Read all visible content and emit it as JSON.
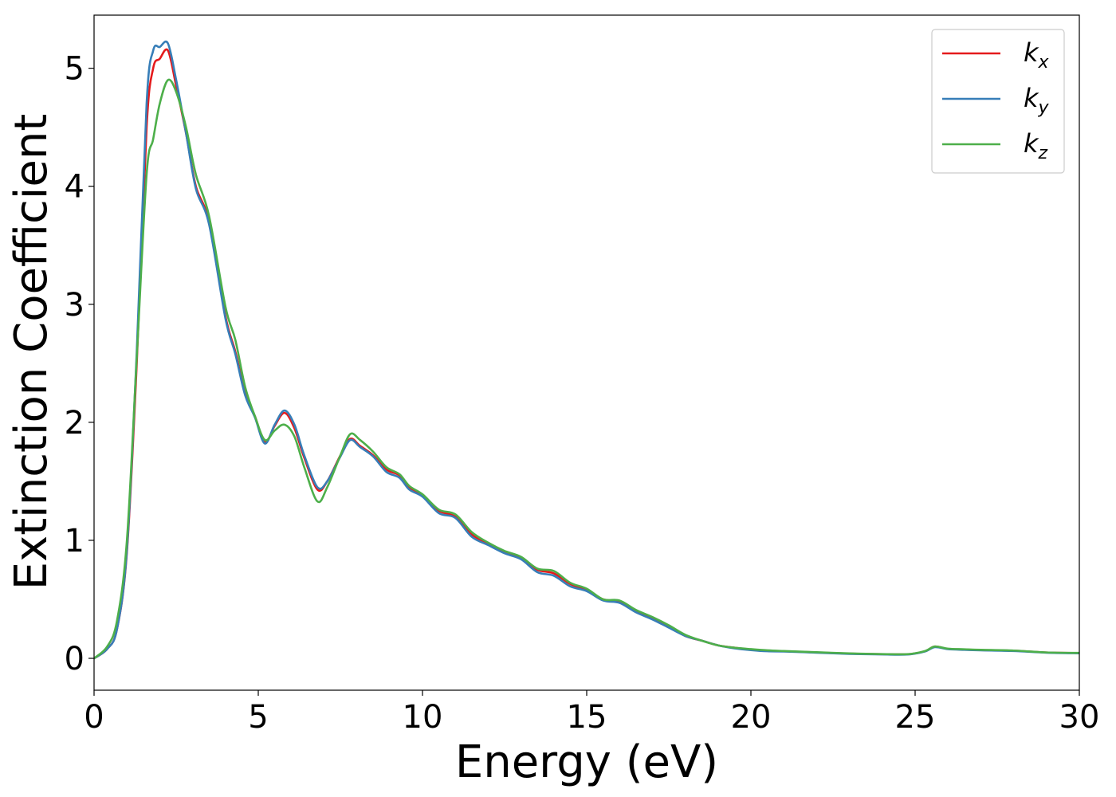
{
  "chart_data": {
    "type": "line",
    "title": "",
    "xlabel": "Energy (eV)",
    "ylabel": "Extinction Coefficient",
    "xlim": [
      0,
      30
    ],
    "ylim": [
      -0.27,
      5.45
    ],
    "xticks": [
      0,
      5,
      10,
      15,
      20,
      25,
      30
    ],
    "xtick_labels": [
      "0",
      "5",
      "10",
      "15",
      "20",
      "25",
      "30"
    ],
    "yticks": [
      0,
      1,
      2,
      3,
      4,
      5
    ],
    "ytick_labels": [
      "0",
      "1",
      "2",
      "3",
      "4",
      "5"
    ],
    "grid": false,
    "legend_position": "top-right",
    "series": [
      {
        "name": "k",
        "subscript": "x",
        "color": "#e41a1c",
        "points": [
          [
            0,
            0
          ],
          [
            0.4,
            0.08
          ],
          [
            0.7,
            0.25
          ],
          [
            1.0,
            0.9
          ],
          [
            1.3,
            2.5
          ],
          [
            1.6,
            4.5
          ],
          [
            1.8,
            5.0
          ],
          [
            2.0,
            5.08
          ],
          [
            2.25,
            5.15
          ],
          [
            2.5,
            4.85
          ],
          [
            2.8,
            4.45
          ],
          [
            3.1,
            4.0
          ],
          [
            3.5,
            3.7
          ],
          [
            4.0,
            2.9
          ],
          [
            4.3,
            2.6
          ],
          [
            4.6,
            2.25
          ],
          [
            4.9,
            2.05
          ],
          [
            5.2,
            1.83
          ],
          [
            5.5,
            1.97
          ],
          [
            5.8,
            2.08
          ],
          [
            6.1,
            1.95
          ],
          [
            6.4,
            1.7
          ],
          [
            6.8,
            1.43
          ],
          [
            7.1,
            1.5
          ],
          [
            7.5,
            1.72
          ],
          [
            7.8,
            1.86
          ],
          [
            8.1,
            1.8
          ],
          [
            8.5,
            1.72
          ],
          [
            8.9,
            1.6
          ],
          [
            9.3,
            1.55
          ],
          [
            9.6,
            1.45
          ],
          [
            10.0,
            1.38
          ],
          [
            10.5,
            1.25
          ],
          [
            11.0,
            1.2
          ],
          [
            11.5,
            1.05
          ],
          [
            12.0,
            0.97
          ],
          [
            12.5,
            0.9
          ],
          [
            13.0,
            0.85
          ],
          [
            13.5,
            0.75
          ],
          [
            14.0,
            0.72
          ],
          [
            14.5,
            0.63
          ],
          [
            15.0,
            0.58
          ],
          [
            15.5,
            0.5
          ],
          [
            16.0,
            0.48
          ],
          [
            16.5,
            0.4
          ],
          [
            17.0,
            0.34
          ],
          [
            17.5,
            0.27
          ],
          [
            18.0,
            0.19
          ],
          [
            18.5,
            0.15
          ],
          [
            19.0,
            0.11
          ],
          [
            19.5,
            0.09
          ],
          [
            20.0,
            0.075
          ],
          [
            20.5,
            0.065
          ],
          [
            21.0,
            0.06
          ],
          [
            22.0,
            0.05
          ],
          [
            23.0,
            0.04
          ],
          [
            24.0,
            0.035
          ],
          [
            24.8,
            0.035
          ],
          [
            25.3,
            0.06
          ],
          [
            25.6,
            0.1
          ],
          [
            26.0,
            0.08
          ],
          [
            26.5,
            0.075
          ],
          [
            27.0,
            0.07
          ],
          [
            28.0,
            0.065
          ],
          [
            29.0,
            0.05
          ],
          [
            30.0,
            0.045
          ]
        ]
      },
      {
        "name": "k",
        "subscript": "y",
        "color": "#377eb8",
        "points": [
          [
            0,
            0
          ],
          [
            0.4,
            0.08
          ],
          [
            0.7,
            0.25
          ],
          [
            1.0,
            0.92
          ],
          [
            1.3,
            2.6
          ],
          [
            1.6,
            4.7
          ],
          [
            1.8,
            5.15
          ],
          [
            2.0,
            5.18
          ],
          [
            2.25,
            5.21
          ],
          [
            2.5,
            4.9
          ],
          [
            2.8,
            4.45
          ],
          [
            3.1,
            3.98
          ],
          [
            3.5,
            3.68
          ],
          [
            4.0,
            2.88
          ],
          [
            4.3,
            2.58
          ],
          [
            4.6,
            2.23
          ],
          [
            4.9,
            2.04
          ],
          [
            5.2,
            1.82
          ],
          [
            5.5,
            1.98
          ],
          [
            5.8,
            2.1
          ],
          [
            6.1,
            1.98
          ],
          [
            6.4,
            1.72
          ],
          [
            6.8,
            1.45
          ],
          [
            7.1,
            1.5
          ],
          [
            7.5,
            1.71
          ],
          [
            7.8,
            1.85
          ],
          [
            8.1,
            1.79
          ],
          [
            8.5,
            1.71
          ],
          [
            8.9,
            1.58
          ],
          [
            9.3,
            1.53
          ],
          [
            9.6,
            1.43
          ],
          [
            10.0,
            1.37
          ],
          [
            10.5,
            1.23
          ],
          [
            11.0,
            1.19
          ],
          [
            11.5,
            1.03
          ],
          [
            12.0,
            0.96
          ],
          [
            12.5,
            0.89
          ],
          [
            13.0,
            0.84
          ],
          [
            13.5,
            0.73
          ],
          [
            14.0,
            0.7
          ],
          [
            14.5,
            0.61
          ],
          [
            15.0,
            0.57
          ],
          [
            15.5,
            0.49
          ],
          [
            16.0,
            0.47
          ],
          [
            16.5,
            0.39
          ],
          [
            17.0,
            0.33
          ],
          [
            17.5,
            0.26
          ],
          [
            18.0,
            0.19
          ],
          [
            18.5,
            0.15
          ],
          [
            19.0,
            0.11
          ],
          [
            19.5,
            0.085
          ],
          [
            20.0,
            0.07
          ],
          [
            20.5,
            0.06
          ],
          [
            21.0,
            0.058
          ],
          [
            22.0,
            0.048
          ],
          [
            23.0,
            0.038
          ],
          [
            24.0,
            0.033
          ],
          [
            24.8,
            0.033
          ],
          [
            25.3,
            0.058
          ],
          [
            25.6,
            0.095
          ],
          [
            26.0,
            0.078
          ],
          [
            26.5,
            0.072
          ],
          [
            27.0,
            0.068
          ],
          [
            28.0,
            0.062
          ],
          [
            29.0,
            0.048
          ],
          [
            30.0,
            0.043
          ]
        ]
      },
      {
        "name": "k",
        "subscript": "z",
        "color": "#4daf4a",
        "points": [
          [
            0,
            0
          ],
          [
            0.4,
            0.1
          ],
          [
            0.7,
            0.32
          ],
          [
            1.0,
            1.0
          ],
          [
            1.3,
            2.55
          ],
          [
            1.6,
            4.1
          ],
          [
            1.8,
            4.4
          ],
          [
            2.0,
            4.7
          ],
          [
            2.25,
            4.9
          ],
          [
            2.5,
            4.8
          ],
          [
            2.8,
            4.5
          ],
          [
            3.1,
            4.1
          ],
          [
            3.5,
            3.75
          ],
          [
            4.0,
            2.98
          ],
          [
            4.3,
            2.7
          ],
          [
            4.6,
            2.3
          ],
          [
            4.9,
            2.05
          ],
          [
            5.2,
            1.85
          ],
          [
            5.5,
            1.93
          ],
          [
            5.8,
            1.98
          ],
          [
            6.1,
            1.88
          ],
          [
            6.4,
            1.62
          ],
          [
            6.8,
            1.33
          ],
          [
            7.1,
            1.45
          ],
          [
            7.5,
            1.72
          ],
          [
            7.8,
            1.9
          ],
          [
            8.1,
            1.85
          ],
          [
            8.5,
            1.75
          ],
          [
            8.9,
            1.62
          ],
          [
            9.3,
            1.56
          ],
          [
            9.6,
            1.46
          ],
          [
            10.0,
            1.39
          ],
          [
            10.5,
            1.26
          ],
          [
            11.0,
            1.22
          ],
          [
            11.5,
            1.07
          ],
          [
            12.0,
            0.98
          ],
          [
            12.5,
            0.91
          ],
          [
            13.0,
            0.86
          ],
          [
            13.5,
            0.76
          ],
          [
            14.0,
            0.74
          ],
          [
            14.5,
            0.64
          ],
          [
            15.0,
            0.59
          ],
          [
            15.5,
            0.5
          ],
          [
            16.0,
            0.49
          ],
          [
            16.5,
            0.41
          ],
          [
            17.0,
            0.35
          ],
          [
            17.5,
            0.28
          ],
          [
            18.0,
            0.2
          ],
          [
            18.5,
            0.15
          ],
          [
            19.0,
            0.11
          ],
          [
            19.5,
            0.09
          ],
          [
            20.0,
            0.078
          ],
          [
            20.5,
            0.068
          ],
          [
            21.0,
            0.062
          ],
          [
            22.0,
            0.052
          ],
          [
            23.0,
            0.042
          ],
          [
            24.0,
            0.036
          ],
          [
            24.8,
            0.036
          ],
          [
            25.3,
            0.062
          ],
          [
            25.6,
            0.1
          ],
          [
            26.0,
            0.082
          ],
          [
            26.5,
            0.077
          ],
          [
            27.0,
            0.072
          ],
          [
            28.0,
            0.066
          ],
          [
            29.0,
            0.05
          ],
          [
            30.0,
            0.046
          ]
        ]
      }
    ]
  }
}
